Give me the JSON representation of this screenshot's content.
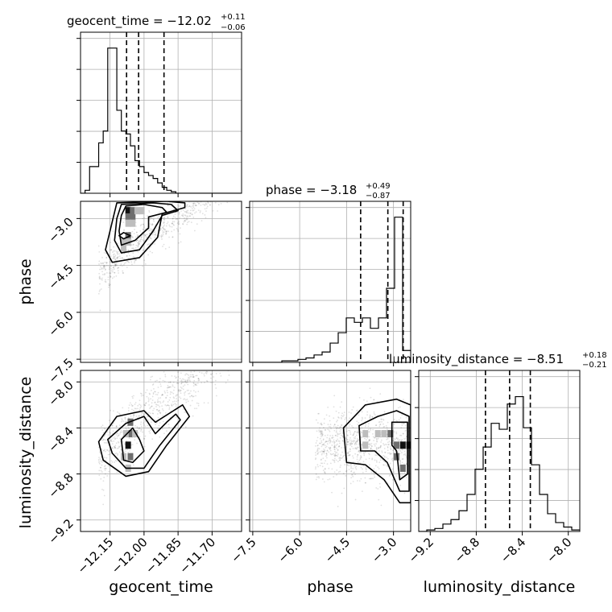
{
  "chart_data": {
    "type": "corner",
    "parameters": [
      {
        "name": "geocent_time",
        "median": -12.02,
        "plus": 0.11,
        "minus": 0.06,
        "title_main": "geocent_time = −12.02",
        "title_plus": "+0.11",
        "title_minus": "−0.06",
        "range": [
          -12.28,
          -11.57
        ],
        "ticks": [
          -12.15,
          -12.0,
          -11.85,
          -11.7
        ],
        "tick_labels": [
          "−12.15",
          "−12.00",
          "−11.85",
          "−11.70"
        ],
        "quantile_lines": [
          -12.077,
          -12.024,
          -11.912
        ],
        "hist_bins": {
          "start": -12.28,
          "width": 0.02,
          "values": [
            0,
            0.02,
            0.18,
            0.18,
            0.34,
            0.42,
            0.98,
            0.98,
            0.56,
            0.42,
            0.4,
            0.32,
            0.22,
            0.18,
            0.14,
            0.12,
            0.1,
            0.07,
            0.04,
            0.02,
            0.01,
            0,
            0,
            0,
            0,
            0,
            0,
            0,
            0,
            0,
            0,
            0,
            0,
            0,
            0,
            0
          ]
        }
      },
      {
        "name": "phase",
        "median": -3.18,
        "plus": 0.49,
        "minus": 0.87,
        "title_main": "phase = −3.18",
        "title_plus": "+0.49",
        "title_minus": "−0.87",
        "range": [
          -7.6,
          -2.45
        ],
        "ticks": [
          -7.5,
          -6.0,
          -4.5,
          -3.0
        ],
        "tick_labels": [
          "−7.5",
          "−6.0",
          "−4.5",
          "−3.0"
        ],
        "quantile_lines": [
          -4.05,
          -3.18,
          -2.69
        ],
        "hist_bins": {
          "start": -7.6,
          "width": 0.2575,
          "values": [
            0,
            0,
            0,
            0,
            0.01,
            0.01,
            0.02,
            0.03,
            0.05,
            0.07,
            0.13,
            0.2,
            0.3,
            0.27,
            0.3,
            0.23,
            0.3,
            0.5,
            0.98,
            0.08
          ]
        }
      },
      {
        "name": "luminosity_distance",
        "median": -8.51,
        "plus": 0.18,
        "minus": 0.21,
        "title_main": "luminosity_distance = −8.51",
        "title_plus": "+0.18",
        "title_minus": "−0.21",
        "range": [
          -9.3,
          -7.9
        ],
        "ticks": [
          -9.2,
          -8.8,
          -8.4,
          -8.0
        ],
        "tick_labels": [
          "−9.2",
          "−8.8",
          "−8.4",
          "−8.0"
        ],
        "quantile_lines": [
          -8.72,
          -8.51,
          -8.33
        ],
        "hist_bins": {
          "start": -9.3,
          "width": 0.07,
          "values": [
            0,
            0.01,
            0.02,
            0.05,
            0.08,
            0.14,
            0.25,
            0.42,
            0.57,
            0.73,
            0.69,
            0.86,
            0.91,
            0.7,
            0.45,
            0.25,
            0.12,
            0.06,
            0.03,
            0.01
          ]
        }
      }
    ],
    "pairs": [
      {
        "x": "geocent_time",
        "y": "phase",
        "density_blocks": [
          [
            -12.07,
            -2.75,
            3
          ],
          [
            -12.05,
            -2.75,
            2
          ],
          [
            -12.07,
            -2.95,
            2
          ],
          [
            -12.05,
            -2.95,
            2
          ],
          [
            -12.07,
            -3.15,
            1
          ],
          [
            -12.05,
            -3.15,
            1
          ],
          [
            -12.03,
            -2.75,
            1
          ],
          [
            -12.01,
            -2.75,
            1
          ],
          [
            -12.07,
            -3.55,
            2
          ],
          [
            -12.09,
            -3.75,
            1
          ],
          [
            -12.09,
            -3.95,
            1
          ],
          [
            -12.07,
            -3.75,
            1
          ]
        ],
        "contours": [
          [
            [
              -12.08,
              -2.6
            ],
            [
              -12.0,
              -2.55
            ],
            [
              -11.92,
              -2.65
            ],
            [
              -11.9,
              -2.8
            ],
            [
              -11.98,
              -2.95
            ],
            [
              -11.98,
              -3.3
            ],
            [
              -12.04,
              -3.7
            ],
            [
              -12.1,
              -3.85
            ],
            [
              -12.11,
              -3.4
            ],
            [
              -12.1,
              -2.9
            ]
          ],
          [
            [
              -12.1,
              -2.55
            ],
            [
              -11.96,
              -2.5
            ],
            [
              -11.88,
              -2.55
            ],
            [
              -11.85,
              -2.75
            ],
            [
              -11.92,
              -2.9
            ],
            [
              -11.96,
              -3.4
            ],
            [
              -12.02,
              -4.0
            ],
            [
              -12.1,
              -4.1
            ],
            [
              -12.13,
              -3.7
            ],
            [
              -12.12,
              -3.0
            ]
          ],
          [
            [
              -12.12,
              -2.5
            ],
            [
              -11.9,
              -2.45
            ],
            [
              -11.82,
              -2.5
            ],
            [
              -11.82,
              -2.65
            ],
            [
              -11.92,
              -2.85
            ],
            [
              -11.94,
              -3.6
            ],
            [
              -12.02,
              -4.25
            ],
            [
              -12.14,
              -4.4
            ],
            [
              -12.17,
              -4.0
            ],
            [
              -12.14,
              -3.1
            ]
          ],
          [
            [
              -12.09,
              -3.45
            ],
            [
              -12.06,
              -3.55
            ],
            [
              -12.09,
              -3.65
            ],
            [
              -12.11,
              -3.55
            ]
          ]
        ],
        "scatter_trend": {
          "x_range": [
            -12.2,
            -11.6
          ],
          "slope": 5.6,
          "intercept_at_start": -4.8,
          "spread": 0.75
        }
      },
      {
        "x": "geocent_time",
        "y": "luminosity_distance",
        "density_blocks": [
          [
            -12.06,
            -8.35,
            2
          ],
          [
            -12.06,
            -8.45,
            2
          ],
          [
            -12.07,
            -8.55,
            3
          ],
          [
            -12.06,
            -8.65,
            2
          ],
          [
            -12.04,
            -8.45,
            1
          ],
          [
            -12.08,
            -8.45,
            1
          ],
          [
            -12.09,
            -8.65,
            1
          ],
          [
            -12.07,
            -8.75,
            1
          ]
        ],
        "contours": [
          [
            [
              -12.1,
              -8.5
            ],
            [
              -12.05,
              -8.4
            ],
            [
              -12.02,
              -8.5
            ],
            [
              -12.0,
              -8.6
            ],
            [
              -12.05,
              -8.7
            ],
            [
              -12.09,
              -8.68
            ]
          ],
          [
            [
              -12.16,
              -8.5
            ],
            [
              -12.08,
              -8.36
            ],
            [
              -12.0,
              -8.3
            ],
            [
              -11.95,
              -8.45
            ],
            [
              -11.9,
              -8.35
            ],
            [
              -11.86,
              -8.28
            ],
            [
              -11.84,
              -8.33
            ],
            [
              -11.93,
              -8.55
            ],
            [
              -12.0,
              -8.75
            ],
            [
              -12.08,
              -8.75
            ],
            [
              -12.14,
              -8.62
            ]
          ],
          [
            [
              -12.2,
              -8.52
            ],
            [
              -12.12,
              -8.3
            ],
            [
              -12.0,
              -8.25
            ],
            [
              -11.95,
              -8.35
            ],
            [
              -11.87,
              -8.25
            ],
            [
              -11.83,
              -8.2
            ],
            [
              -11.8,
              -8.3
            ],
            [
              -11.9,
              -8.55
            ],
            [
              -11.98,
              -8.78
            ],
            [
              -12.08,
              -8.82
            ],
            [
              -12.18,
              -8.68
            ]
          ]
        ],
        "scatter_trend": {
          "x_range": [
            -12.2,
            -11.6
          ],
          "slope": 1.7,
          "intercept_at_start": -8.65,
          "spread": 0.3
        }
      },
      {
        "x": "phase",
        "y": "luminosity_distance",
        "density_blocks": [
          [
            -3.1,
            -8.45,
            2
          ],
          [
            -2.9,
            -8.55,
            2
          ],
          [
            -2.9,
            -8.65,
            2
          ],
          [
            -2.7,
            -8.55,
            3
          ],
          [
            -2.7,
            -8.75,
            2
          ],
          [
            -3.3,
            -8.45,
            1
          ],
          [
            -3.5,
            -8.45,
            1
          ],
          [
            -3.9,
            -8.45,
            1
          ],
          [
            -3.9,
            -8.55,
            1
          ],
          [
            -2.5,
            -8.55,
            3
          ]
        ],
        "contours": [
          [
            [
              -3.05,
              -8.35
            ],
            [
              -2.55,
              -8.35
            ],
            [
              -2.55,
              -8.8
            ],
            [
              -2.8,
              -8.85
            ],
            [
              -2.9,
              -8.6
            ],
            [
              -3.05,
              -8.55
            ]
          ],
          [
            [
              -4.1,
              -8.38
            ],
            [
              -3.5,
              -8.3
            ],
            [
              -2.9,
              -8.25
            ],
            [
              -2.5,
              -8.3
            ],
            [
              -2.5,
              -8.95
            ],
            [
              -2.8,
              -8.95
            ],
            [
              -3.2,
              -8.7
            ],
            [
              -3.6,
              -8.6
            ],
            [
              -4.05,
              -8.6
            ]
          ],
          [
            [
              -4.6,
              -8.4
            ],
            [
              -3.9,
              -8.2
            ],
            [
              -2.9,
              -8.15
            ],
            [
              -2.45,
              -8.2
            ],
            [
              -2.45,
              -9.05
            ],
            [
              -2.8,
              -9.05
            ],
            [
              -3.3,
              -8.85
            ],
            [
              -3.9,
              -8.72
            ],
            [
              -4.5,
              -8.7
            ]
          ]
        ],
        "scatter_trend": {
          "x_range": [
            -5.5,
            -2.45
          ],
          "slope": 0,
          "intercept_at_start": -8.55,
          "spread": 0.35
        }
      }
    ],
    "grid": true,
    "hist_yticks_shown": false
  }
}
